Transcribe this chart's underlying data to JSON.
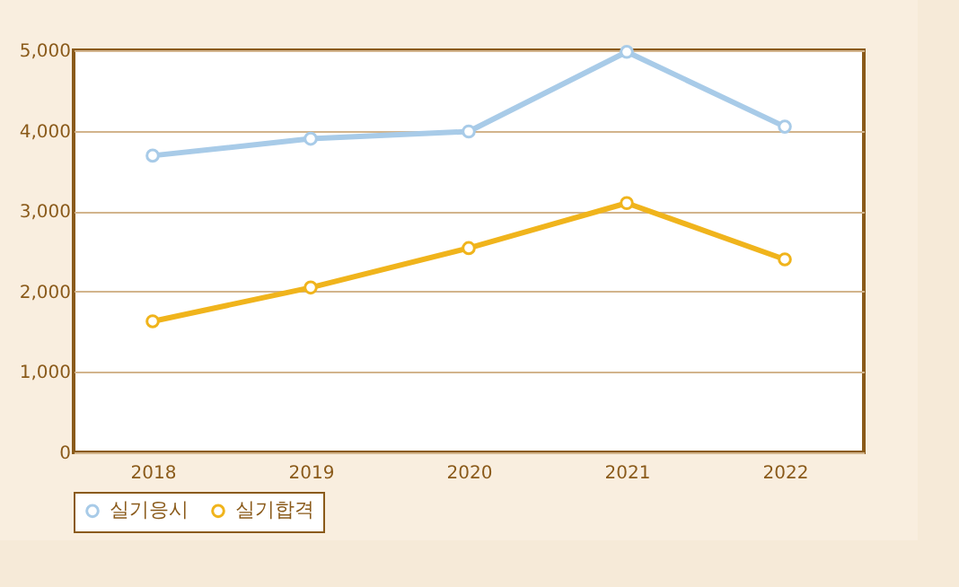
{
  "chart_data": {
    "type": "line",
    "categories": [
      "2018",
      "2019",
      "2020",
      "2021",
      "2022"
    ],
    "series": [
      {
        "name": "실기응시",
        "color": "#a8cbe8",
        "values": [
          3690,
          3900,
          3990,
          4980,
          4050
        ]
      },
      {
        "name": "실기합격",
        "color": "#f0b41c",
        "values": [
          1630,
          2050,
          2540,
          3100,
          2400
        ]
      }
    ],
    "ylim": [
      0,
      5000
    ],
    "yticks": [
      {
        "value": 0,
        "label": "0"
      },
      {
        "value": 1000,
        "label": "1,000"
      },
      {
        "value": 2000,
        "label": "2,000"
      },
      {
        "value": 3000,
        "label": "3,000"
      },
      {
        "value": 4000,
        "label": "4,000"
      },
      {
        "value": 5000,
        "label": "5,000"
      }
    ],
    "grid": "y",
    "legend": "bottom",
    "marker": "circle",
    "line_style": "solid"
  }
}
